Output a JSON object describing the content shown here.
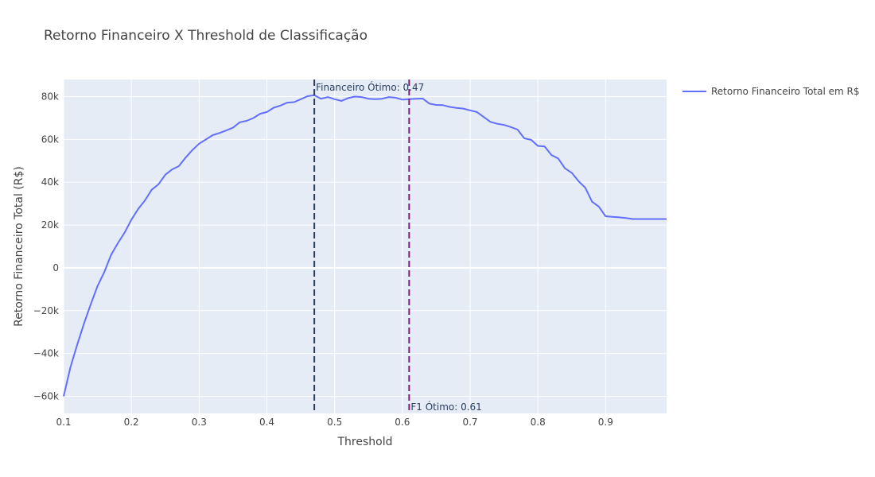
{
  "chart_data": {
    "type": "line",
    "title": "Retorno Financeiro X Threshold de Classificação",
    "xlabel": "Threshold",
    "ylabel": "Retorno Financeiro Total (R$)",
    "xlim": [
      0.1,
      0.99
    ],
    "ylim": [
      -68000,
      88000
    ],
    "xticks": [
      0.1,
      0.2,
      0.3,
      0.4,
      0.5,
      0.6,
      0.7,
      0.8,
      0.9
    ],
    "xtick_labels": [
      "0.1",
      "0.2",
      "0.3",
      "0.4",
      "0.5",
      "0.6",
      "0.7",
      "0.8",
      "0.9"
    ],
    "yticks": [
      -60000,
      -40000,
      -20000,
      0,
      20000,
      40000,
      60000,
      80000
    ],
    "ytick_labels": [
      "−60k",
      "−40k",
      "−20k",
      "0",
      "20k",
      "40k",
      "60k",
      "80k"
    ],
    "grid": true,
    "legend": "right",
    "colors": {
      "series": "#636efa",
      "plot_background": "#e5ecf6",
      "grid": "#ffffff",
      "vline_financeiro": "#2a3f5f",
      "vline_f1": "#7b1a7b"
    },
    "series": [
      {
        "name": "Retorno Financeiro Total em R$",
        "x": [
          0.1,
          0.11,
          0.12,
          0.13,
          0.14,
          0.15,
          0.16,
          0.17,
          0.18,
          0.19,
          0.2,
          0.21,
          0.22,
          0.23,
          0.24,
          0.25,
          0.26,
          0.27,
          0.28,
          0.29,
          0.3,
          0.31,
          0.32,
          0.33,
          0.34,
          0.35,
          0.36,
          0.37,
          0.38,
          0.39,
          0.4,
          0.41,
          0.42,
          0.43,
          0.44,
          0.45,
          0.46,
          0.47,
          0.48,
          0.49,
          0.5,
          0.51,
          0.52,
          0.53,
          0.54,
          0.55,
          0.56,
          0.57,
          0.58,
          0.59,
          0.6,
          0.61,
          0.62,
          0.63,
          0.64,
          0.65,
          0.66,
          0.67,
          0.68,
          0.69,
          0.7,
          0.71,
          0.72,
          0.73,
          0.74,
          0.75,
          0.76,
          0.77,
          0.78,
          0.79,
          0.8,
          0.81,
          0.82,
          0.83,
          0.84,
          0.85,
          0.86,
          0.87,
          0.88,
          0.89,
          0.9,
          0.91,
          0.92,
          0.93,
          0.94,
          0.95,
          0.96,
          0.97,
          0.98,
          0.99
        ],
        "y": [
          -60000,
          -46500,
          -36000,
          -26000,
          -17000,
          -8500,
          -2000,
          6000,
          11500,
          16500,
          22500,
          27500,
          31500,
          36500,
          39000,
          43500,
          46000,
          47500,
          51500,
          55000,
          58000,
          60000,
          62000,
          63000,
          64200,
          65500,
          68000,
          68700,
          70000,
          72000,
          72800,
          74800,
          75800,
          77200,
          77400,
          78800,
          80200,
          80700,
          79000,
          79800,
          78800,
          78000,
          79300,
          80000,
          79800,
          79000,
          78800,
          79000,
          79800,
          79500,
          78600,
          78800,
          79000,
          79100,
          76700,
          76100,
          76000,
          75200,
          74700,
          74400,
          73600,
          72800,
          70500,
          68200,
          67300,
          66800,
          65800,
          64600,
          60500,
          59800,
          57000,
          56700,
          52700,
          51100,
          46500,
          44400,
          40500,
          37400,
          30900,
          28600,
          24100,
          23800,
          23600,
          23300,
          22800,
          22800,
          22800,
          22800,
          22800,
          22800
        ]
      }
    ],
    "annotations": [
      {
        "text": "Financeiro Ótimo: 0.47",
        "x": 0.47,
        "position": "top"
      },
      {
        "text": "F1 Ótimo: 0.61",
        "x": 0.61,
        "position": "bottom"
      }
    ]
  }
}
